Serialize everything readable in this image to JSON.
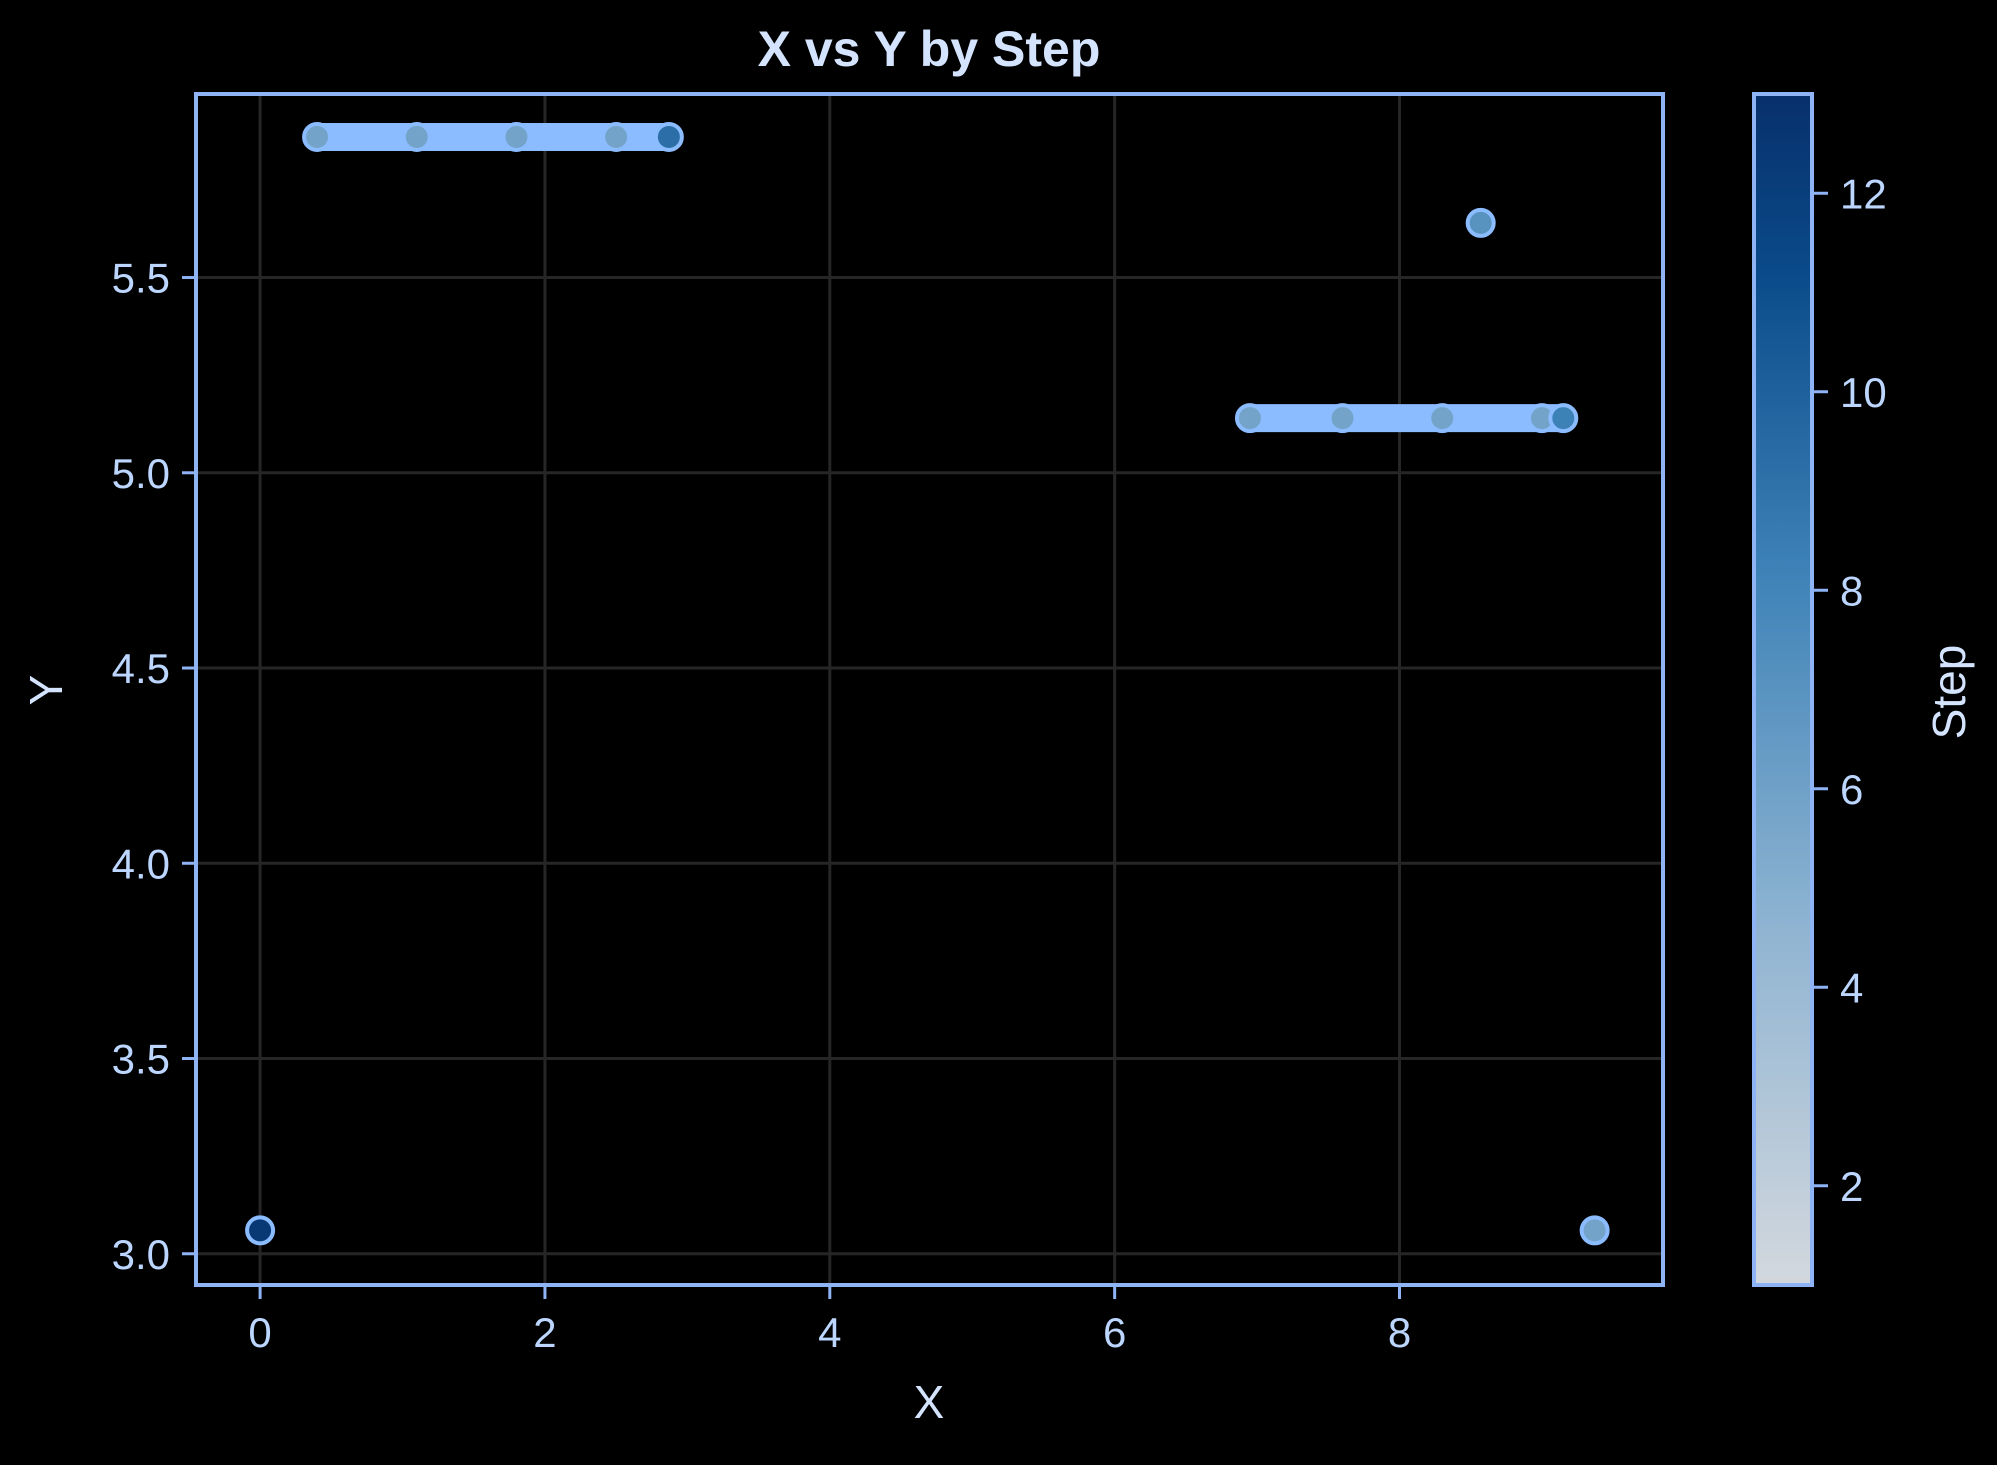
{
  "chart_data": {
    "type": "scatter",
    "title": "X vs Y by Step",
    "xlabel": "X",
    "ylabel": "Y",
    "xlim": [
      -0.45,
      9.85
    ],
    "ylim": [
      2.92,
      5.97
    ],
    "xticks": [
      0,
      2,
      4,
      6,
      8
    ],
    "xtick_labels": [
      "0",
      "2",
      "4",
      "6",
      "8"
    ],
    "yticks": [
      3.0,
      3.5,
      4.0,
      4.5,
      5.0,
      5.5
    ],
    "ytick_labels": [
      "3.0",
      "3.5",
      "4.0",
      "4.5",
      "5.0",
      "5.5"
    ],
    "grid": true,
    "colorbar": {
      "label": "Step",
      "range": [
        1,
        13
      ],
      "ticks": [
        2,
        4,
        6,
        8,
        10,
        12
      ],
      "tick_labels": [
        "2",
        "4",
        "6",
        "8",
        "10",
        "12"
      ],
      "colormap": [
        "#d3d8de",
        "#8fb4d2",
        "#3d82b7",
        "#0a4a8a",
        "#08306b"
      ]
    },
    "series": [
      {
        "points": [
          {
            "x": 0.0,
            "y": 3.06,
            "step": 12
          },
          {
            "x": 0.4,
            "y": 5.86,
            "step": 5
          },
          {
            "x": 1.1,
            "y": 5.86,
            "step": 5
          },
          {
            "x": 1.8,
            "y": 5.86,
            "step": 5
          },
          {
            "x": 2.5,
            "y": 5.86,
            "step": 5
          },
          {
            "x": 2.87,
            "y": 5.86,
            "step": 8
          },
          {
            "x": 8.57,
            "y": 5.64,
            "step": 6
          },
          {
            "x": 6.95,
            "y": 5.14,
            "step": 5
          },
          {
            "x": 7.6,
            "y": 5.14,
            "step": 5
          },
          {
            "x": 8.3,
            "y": 5.14,
            "step": 5
          },
          {
            "x": 9.0,
            "y": 5.14,
            "step": 5
          },
          {
            "x": 9.15,
            "y": 5.14,
            "step": 7
          },
          {
            "x": 9.37,
            "y": 3.06,
            "step": 5
          }
        ]
      }
    ],
    "segments": [
      {
        "x0": 0.4,
        "x1": 2.87,
        "y": 5.86
      },
      {
        "x0": 6.95,
        "x1": 9.15,
        "y": 5.14
      }
    ],
    "colors": {
      "background": "#000000",
      "frame": "#8fb4f5",
      "grid": "#262626",
      "text": "#bcd6ff",
      "segment": "#8bbcff"
    }
  }
}
